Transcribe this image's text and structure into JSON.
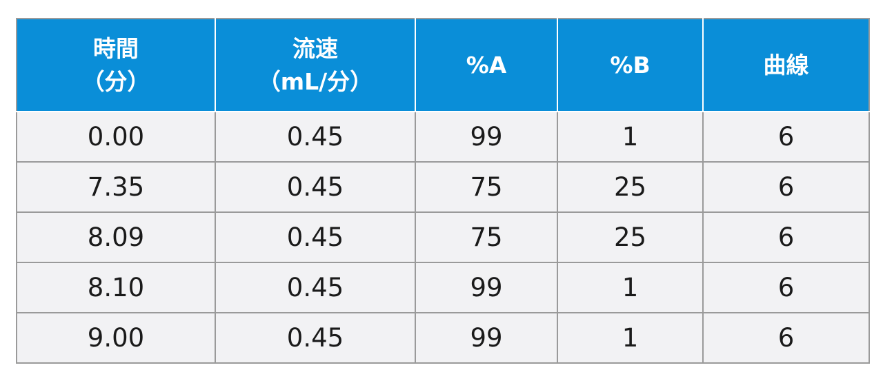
{
  "table": {
    "headers": [
      {
        "line1": "時間",
        "line2": "（分）"
      },
      {
        "line1": "流速",
        "line2": "（mL/分）"
      },
      {
        "line1": "%A",
        "line2": ""
      },
      {
        "line1": "%B",
        "line2": ""
      },
      {
        "line1": "曲線",
        "line2": ""
      }
    ],
    "rows": [
      [
        "0.00",
        "0.45",
        "99",
        "1",
        "6"
      ],
      [
        "7.35",
        "0.45",
        "75",
        "25",
        "6"
      ],
      [
        "8.09",
        "0.45",
        "75",
        "25",
        "6"
      ],
      [
        "8.10",
        "0.45",
        "99",
        "1",
        "6"
      ],
      [
        "9.00",
        "0.45",
        "99",
        "1",
        "6"
      ]
    ],
    "colors": {
      "header_bg": "#0a8ed8",
      "header_text": "#ffffff",
      "row_bg": "#f2f2f4",
      "border": "#9a9a9a"
    }
  }
}
